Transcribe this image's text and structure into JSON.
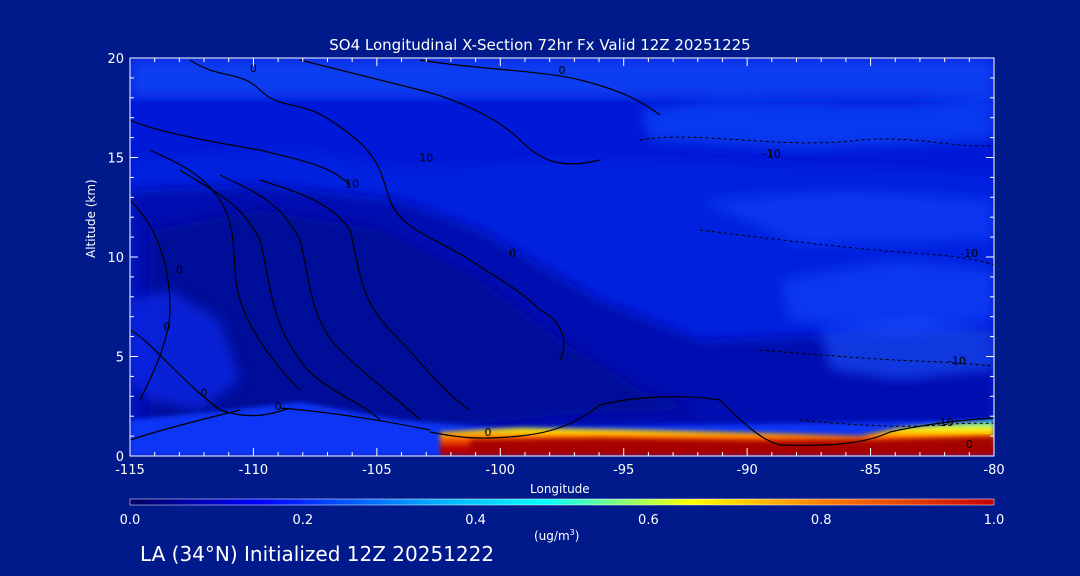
{
  "chart_data": {
    "type": "heatmap",
    "title": "SO4 Longitudinal X-Section 72hr  Fx Valid 12Z 20251225",
    "xlabel": "Longitude",
    "ylabel": "Altitude (km)",
    "xlim": [
      -115,
      -80
    ],
    "ylim": [
      0,
      20
    ],
    "x_ticks": [
      "-115",
      "-110",
      "-105",
      "-100",
      "-95",
      "-90",
      "-85",
      "-80"
    ],
    "y_ticks": [
      "0",
      "5",
      "10",
      "15",
      "20"
    ],
    "colorbar": {
      "ticks": [
        "0.0",
        "0.2",
        "0.4",
        "0.6",
        "0.8",
        "1.0"
      ],
      "units_base": "(ug/m",
      "units_sup": "3",
      "units_tail": ")",
      "range": [
        0.0,
        1.0
      ],
      "colors": [
        "#000060",
        "#0000ff",
        "#00aaff",
        "#00ffff",
        "#ffff00",
        "#ff7f00",
        "#c80000"
      ]
    },
    "contour_labels": [
      {
        "text": "0",
        "lon": -112,
        "alt": 3.0
      },
      {
        "text": "0",
        "lon": -113,
        "alt": 9.2
      },
      {
        "text": "0",
        "lon": -113.5,
        "alt": 6.3
      },
      {
        "text": "0",
        "lon": -110,
        "alt": 19.3
      },
      {
        "text": "10",
        "lon": -106,
        "alt": 13.5
      },
      {
        "text": "10",
        "lon": -103,
        "alt": 14.8
      },
      {
        "text": "0",
        "lon": -97.5,
        "alt": 19.2
      },
      {
        "text": "0",
        "lon": -99.5,
        "alt": 10.0
      },
      {
        "text": "0",
        "lon": -109,
        "alt": 2.3
      },
      {
        "text": "0",
        "lon": -100.5,
        "alt": 1.0
      },
      {
        "text": "-10",
        "lon": -89,
        "alt": 15.0
      },
      {
        "text": "-10",
        "lon": -81,
        "alt": 10.0
      },
      {
        "text": "-10",
        "lon": -81.5,
        "alt": 4.6
      },
      {
        "text": "-10",
        "lon": -82,
        "alt": 1.5
      },
      {
        "text": "0",
        "lon": -81,
        "alt": 0.4
      }
    ],
    "high_concentration_band": {
      "description_value_max": 1.0,
      "lon_range": [
        -102,
        -80
      ],
      "alt_range": [
        0,
        1.2
      ]
    }
  },
  "footer": {
    "text": "LA (34°N) Initialized 12Z 20251222"
  }
}
